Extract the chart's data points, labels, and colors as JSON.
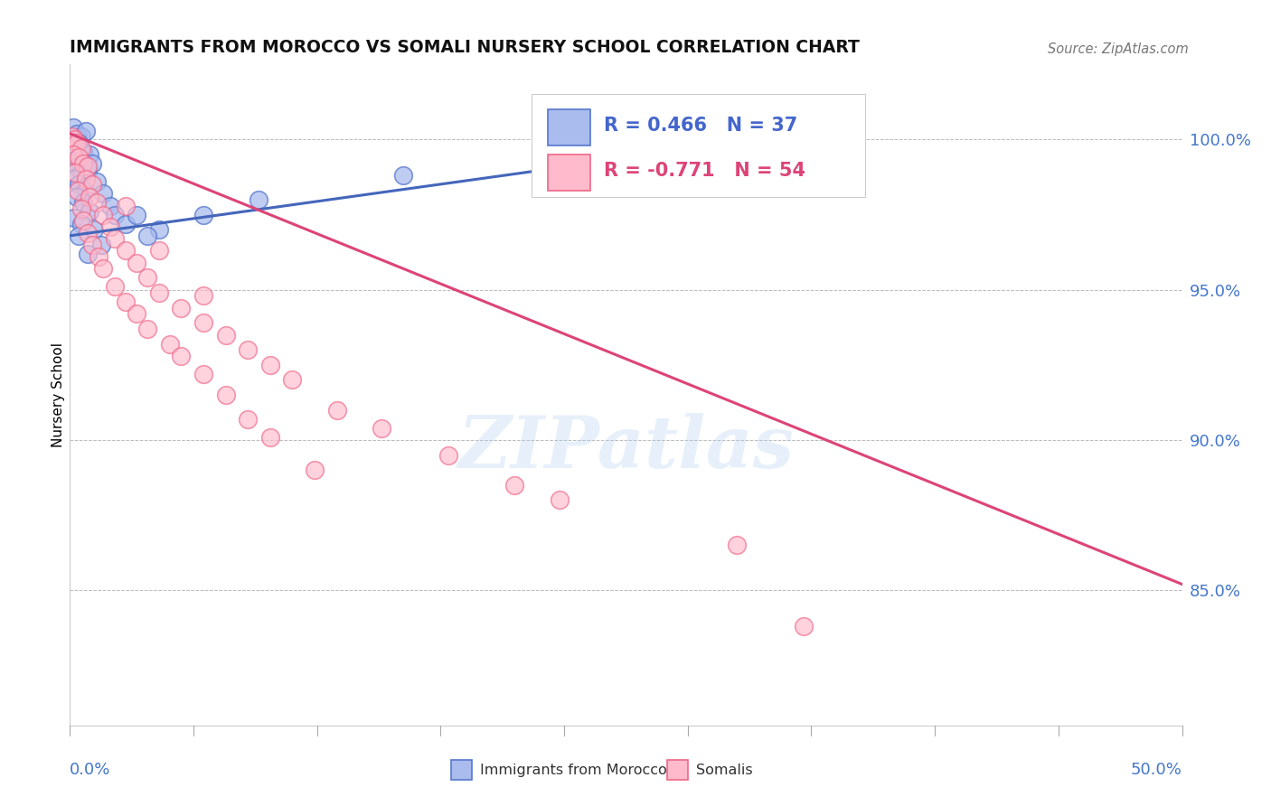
{
  "title": "IMMIGRANTS FROM MOROCCO VS SOMALI NURSERY SCHOOL CORRELATION CHART",
  "source": "Source: ZipAtlas.com",
  "ylabel": "Nursery School",
  "ytick_values": [
    85.0,
    90.0,
    95.0,
    100.0
  ],
  "xmin": 0.0,
  "xmax": 50.0,
  "ymin": 80.5,
  "ymax": 102.5,
  "legend_blue_r": "R = 0.466",
  "legend_blue_n": "N = 37",
  "legend_pink_r": "R = -0.771",
  "legend_pink_n": "N = 54",
  "legend_label_blue": "Immigrants from Morocco",
  "legend_label_pink": "Somalis",
  "watermark": "ZIPatlas",
  "blue_color": "#AABBEE",
  "pink_color": "#FFBBCC",
  "blue_edge_color": "#5577CC",
  "pink_edge_color": "#EE6688",
  "blue_line_color": "#4466BB",
  "pink_line_color": "#DD4477",
  "blue_scatter": [
    [
      0.15,
      100.4
    ],
    [
      0.3,
      100.2
    ],
    [
      0.5,
      100.1
    ],
    [
      0.7,
      100.3
    ],
    [
      0.2,
      99.8
    ],
    [
      0.4,
      99.9
    ],
    [
      0.6,
      99.6
    ],
    [
      0.9,
      99.5
    ],
    [
      0.1,
      99.3
    ],
    [
      0.3,
      99.1
    ],
    [
      0.5,
      98.9
    ],
    [
      0.8,
      99.0
    ],
    [
      1.0,
      99.2
    ],
    [
      0.2,
      98.7
    ],
    [
      0.4,
      98.5
    ],
    [
      0.7,
      98.3
    ],
    [
      1.2,
      98.6
    ],
    [
      0.3,
      98.1
    ],
    [
      0.6,
      97.9
    ],
    [
      1.5,
      98.2
    ],
    [
      0.9,
      97.6
    ],
    [
      0.2,
      97.4
    ],
    [
      1.8,
      97.8
    ],
    [
      0.5,
      97.2
    ],
    [
      2.0,
      97.5
    ],
    [
      1.1,
      97.0
    ],
    [
      0.4,
      96.8
    ],
    [
      2.5,
      97.2
    ],
    [
      3.0,
      97.5
    ],
    [
      1.4,
      96.5
    ],
    [
      0.8,
      96.2
    ],
    [
      4.0,
      97.0
    ],
    [
      3.5,
      96.8
    ],
    [
      6.0,
      97.5
    ],
    [
      8.5,
      98.0
    ],
    [
      15.0,
      98.8
    ],
    [
      35.0,
      100.2
    ]
  ],
  "pink_scatter": [
    [
      0.1,
      100.1
    ],
    [
      0.2,
      100.0
    ],
    [
      0.3,
      99.9
    ],
    [
      0.5,
      99.7
    ],
    [
      0.15,
      99.5
    ],
    [
      0.4,
      99.4
    ],
    [
      0.6,
      99.2
    ],
    [
      0.8,
      99.1
    ],
    [
      0.25,
      98.9
    ],
    [
      0.7,
      98.7
    ],
    [
      1.0,
      98.5
    ],
    [
      0.35,
      98.3
    ],
    [
      0.9,
      98.1
    ],
    [
      1.2,
      97.9
    ],
    [
      0.5,
      97.7
    ],
    [
      1.5,
      97.5
    ],
    [
      0.6,
      97.3
    ],
    [
      1.8,
      97.1
    ],
    [
      0.8,
      96.9
    ],
    [
      2.0,
      96.7
    ],
    [
      1.0,
      96.5
    ],
    [
      2.5,
      96.3
    ],
    [
      1.3,
      96.1
    ],
    [
      3.0,
      95.9
    ],
    [
      1.5,
      95.7
    ],
    [
      3.5,
      95.4
    ],
    [
      2.0,
      95.1
    ],
    [
      4.0,
      94.9
    ],
    [
      2.5,
      94.6
    ],
    [
      5.0,
      94.4
    ],
    [
      3.0,
      94.2
    ],
    [
      6.0,
      93.9
    ],
    [
      3.5,
      93.7
    ],
    [
      7.0,
      93.5
    ],
    [
      4.5,
      93.2
    ],
    [
      8.0,
      93.0
    ],
    [
      5.0,
      92.8
    ],
    [
      9.0,
      92.5
    ],
    [
      6.0,
      92.2
    ],
    [
      10.0,
      92.0
    ],
    [
      7.0,
      91.5
    ],
    [
      12.0,
      91.0
    ],
    [
      8.0,
      90.7
    ],
    [
      14.0,
      90.4
    ],
    [
      9.0,
      90.1
    ],
    [
      17.0,
      89.5
    ],
    [
      11.0,
      89.0
    ],
    [
      20.0,
      88.5
    ],
    [
      22.0,
      88.0
    ],
    [
      30.0,
      86.5
    ],
    [
      33.0,
      83.8
    ],
    [
      6.0,
      94.8
    ],
    [
      4.0,
      96.3
    ],
    [
      2.5,
      97.8
    ]
  ],
  "blue_trend_x": [
    0.0,
    35.0
  ],
  "blue_trend_y": [
    96.8,
    100.4
  ],
  "pink_trend_x": [
    0.0,
    50.0
  ],
  "pink_trend_y": [
    100.2,
    85.2
  ]
}
